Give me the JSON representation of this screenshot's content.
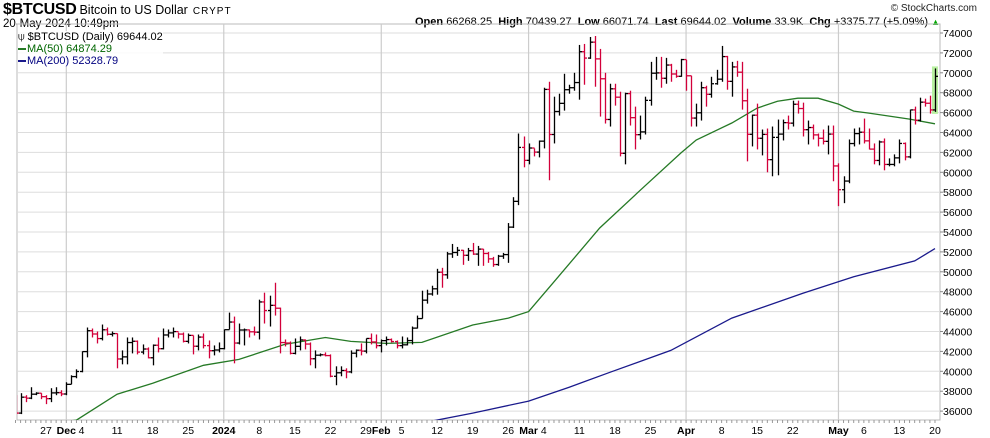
{
  "header": {
    "symbol": "$BTCUSD",
    "name": "Bitcoin to US Dollar",
    "exchange": "CRYPT",
    "datetime": "20-May-2024 10:49pm",
    "copyright": "© StockCharts.com",
    "open_label": "Open",
    "open": "66268.25",
    "high_label": "High",
    "high": "70439.27",
    "low_label": "Low",
    "low": "66071.74",
    "last_label": "Last",
    "last": "69644.02",
    "volume_label": "Volume",
    "volume": "33.9K",
    "chg_label": "Chg",
    "chg": "+3375.77 (+5.09%)",
    "chg_icon": "triangle-up-icon"
  },
  "legend": {
    "main": "$BTCUSD (Daily) 69644.02",
    "ma50": "MA(50) 64874.29",
    "ma200": "MA(200) 52328.79"
  },
  "chart_data": {
    "type": "ohlc",
    "colors": {
      "up": "#000000",
      "down": "#d2003a",
      "ma50": "#267a26",
      "ma200": "#1a1a8c",
      "last_highlight": "#b8f0a0",
      "grid": "#dddddd"
    },
    "ylim": [
      35000,
      74800
    ],
    "yticks": [
      36000,
      38000,
      40000,
      42000,
      44000,
      46000,
      48000,
      50000,
      52000,
      54000,
      56000,
      58000,
      60000,
      62000,
      64000,
      66000,
      68000,
      70000,
      72000,
      74000
    ],
    "grid": true,
    "legend_placement": "top-left",
    "xticks": [
      [
        "2023-11-27",
        "27",
        false
      ],
      [
        "2023-12-01",
        "Dec",
        true
      ],
      [
        "2023-12-04",
        "4",
        false
      ],
      [
        "2023-12-11",
        "11",
        false
      ],
      [
        "2023-12-18",
        "18",
        false
      ],
      [
        "2023-12-25",
        "25",
        false
      ],
      [
        "2024-01-01",
        "2024",
        true
      ],
      [
        "2024-01-08",
        "8",
        false
      ],
      [
        "2024-01-15",
        "15",
        false
      ],
      [
        "2024-01-22",
        "22",
        false
      ],
      [
        "2024-01-29",
        "29",
        false
      ],
      [
        "2024-02-01",
        "Feb",
        true
      ],
      [
        "2024-02-05",
        "5",
        false
      ],
      [
        "2024-02-12",
        "12",
        false
      ],
      [
        "2024-02-19",
        "19",
        false
      ],
      [
        "2024-02-26",
        "26",
        false
      ],
      [
        "2024-03-01",
        "Mar",
        true
      ],
      [
        "2024-03-04",
        "4",
        false
      ],
      [
        "2024-03-11",
        "11",
        false
      ],
      [
        "2024-03-18",
        "18",
        false
      ],
      [
        "2024-03-25",
        "25",
        false
      ],
      [
        "2024-04-01",
        "Apr",
        true
      ],
      [
        "2024-04-08",
        "8",
        false
      ],
      [
        "2024-04-15",
        "15",
        false
      ],
      [
        "2024-04-22",
        "22",
        false
      ],
      [
        "2024-05-01",
        "May",
        true
      ],
      [
        "2024-05-06",
        "6",
        false
      ],
      [
        "2024-05-13",
        "13",
        false
      ],
      [
        "2024-05-20",
        "20",
        false
      ]
    ],
    "columns": [
      "high",
      "low",
      "close"
    ],
    "first_date": "2023-11-21",
    "first_open": 37400,
    "last_open": 66268.25,
    "bars": [
      [
        37600,
        35700,
        35800
      ],
      [
        37800,
        35700,
        37400
      ],
      [
        37600,
        36900,
        37300
      ],
      [
        38400,
        37200,
        37700
      ],
      [
        37900,
        37600,
        37800
      ],
      [
        37800,
        37200,
        37450
      ],
      [
        37600,
        36700,
        37250
      ],
      [
        38300,
        36900,
        37830
      ],
      [
        38400,
        37600,
        37850
      ],
      [
        38100,
        37500,
        37720
      ],
      [
        38900,
        37600,
        38690
      ],
      [
        39600,
        38700,
        39470
      ],
      [
        40200,
        39300,
        39980
      ],
      [
        42000,
        39900,
        41980
      ],
      [
        44400,
        41400,
        44080
      ],
      [
        44300,
        43400,
        43750
      ],
      [
        44000,
        42800,
        43290
      ],
      [
        44700,
        43100,
        44170
      ],
      [
        44400,
        43600,
        43720
      ],
      [
        44000,
        43500,
        43790
      ],
      [
        43800,
        40300,
        41240
      ],
      [
        42100,
        40700,
        41450
      ],
      [
        43400,
        40700,
        42890
      ],
      [
        43400,
        41800,
        43020
      ],
      [
        43100,
        41700,
        41930
      ],
      [
        42700,
        41700,
        42240
      ],
      [
        42400,
        41300,
        41360
      ],
      [
        42700,
        40600,
        42620
      ],
      [
        43400,
        41900,
        42270
      ],
      [
        44300,
        42200,
        43650
      ],
      [
        44200,
        43400,
        43860
      ],
      [
        44400,
        43400,
        43990
      ],
      [
        43900,
        43300,
        43740
      ],
      [
        43900,
        42900,
        43010
      ],
      [
        43800,
        42800,
        43610
      ],
      [
        43600,
        41700,
        42520
      ],
      [
        43700,
        42100,
        43440
      ],
      [
        43800,
        42300,
        42580
      ],
      [
        43100,
        41300,
        42070
      ],
      [
        42600,
        41600,
        42140
      ],
      [
        42900,
        41900,
        42280
      ],
      [
        44200,
        42200,
        44180
      ],
      [
        45900,
        44200,
        44950
      ],
      [
        45500,
        40800,
        42840
      ],
      [
        44800,
        42700,
        44150
      ],
      [
        44300,
        42600,
        44160
      ],
      [
        44200,
        43400,
        43970
      ],
      [
        44500,
        43600,
        43930
      ],
      [
        47200,
        43200,
        46970
      ],
      [
        47900,
        44800,
        46110
      ],
      [
        47600,
        44500,
        46630
      ],
      [
        48900,
        45600,
        46340
      ],
      [
        46400,
        41800,
        42890
      ],
      [
        43200,
        42500,
        42840
      ],
      [
        43000,
        41700,
        41800
      ],
      [
        43300,
        41700,
        42510
      ],
      [
        43500,
        42100,
        43150
      ],
      [
        43200,
        42200,
        42740
      ],
      [
        42900,
        40600,
        41260
      ],
      [
        42100,
        40300,
        41620
      ],
      [
        41800,
        41500,
        41660
      ],
      [
        41900,
        41500,
        41580
      ],
      [
        41700,
        39400,
        39500
      ],
      [
        40500,
        38600,
        39850
      ],
      [
        40500,
        39500,
        40080
      ],
      [
        40300,
        39300,
        39940
      ],
      [
        42100,
        39800,
        41820
      ],
      [
        42200,
        41400,
        42120
      ],
      [
        42800,
        41600,
        42030
      ],
      [
        43300,
        41800,
        43300
      ],
      [
        43800,
        42700,
        42950
      ],
      [
        43700,
        42300,
        42580
      ],
      [
        43200,
        41900,
        43080
      ],
      [
        43500,
        42600,
        43190
      ],
      [
        43300,
        42900,
        42990
      ],
      [
        43100,
        42300,
        42580
      ],
      [
        43500,
        42300,
        42660
      ],
      [
        43400,
        42600,
        43090
      ],
      [
        44500,
        42700,
        44340
      ],
      [
        45600,
        44300,
        45300
      ],
      [
        48100,
        45300,
        47150
      ],
      [
        48200,
        46800,
        47770
      ],
      [
        48600,
        47600,
        48290
      ],
      [
        50300,
        47700,
        49960
      ],
      [
        50400,
        48400,
        49700
      ],
      [
        52000,
        49300,
        51800
      ],
      [
        52800,
        51400,
        51940
      ],
      [
        52500,
        51600,
        52160
      ],
      [
        52200,
        50700,
        51660
      ],
      [
        52400,
        51100,
        52120
      ],
      [
        52900,
        51700,
        51780
      ],
      [
        52600,
        50600,
        52280
      ],
      [
        52300,
        50600,
        51840
      ],
      [
        52000,
        50900,
        51300
      ],
      [
        51500,
        50500,
        50730
      ],
      [
        51700,
        50600,
        51570
      ],
      [
        51900,
        51300,
        51730
      ],
      [
        54900,
        50900,
        54490
      ],
      [
        57500,
        54400,
        57080
      ],
      [
        63900,
        56700,
        62500
      ],
      [
        63600,
        60500,
        61200
      ],
      [
        62900,
        60800,
        62440
      ],
      [
        62400,
        61600,
        62030
      ],
      [
        63200,
        61500,
        63130
      ],
      [
        68500,
        62400,
        68330
      ],
      [
        69100,
        59200,
        63800
      ],
      [
        67600,
        62900,
        66110
      ],
      [
        67900,
        65700,
        66930
      ],
      [
        69900,
        66200,
        68300
      ],
      [
        68800,
        67900,
        68500
      ],
      [
        70000,
        68200,
        69020
      ],
      [
        72800,
        67300,
        72120
      ],
      [
        72900,
        68800,
        71480
      ],
      [
        73600,
        71400,
        73080
      ],
      [
        73700,
        68600,
        71400
      ],
      [
        72400,
        65600,
        69400
      ],
      [
        70000,
        64900,
        65310
      ],
      [
        68900,
        64600,
        68390
      ],
      [
        68900,
        66700,
        67550
      ],
      [
        68100,
        61600,
        61910
      ],
      [
        68000,
        60800,
        67910
      ],
      [
        68200,
        64700,
        65490
      ],
      [
        66600,
        62300,
        63780
      ],
      [
        65700,
        63300,
        64060
      ],
      [
        67600,
        63800,
        67230
      ],
      [
        71100,
        66700,
        69960
      ],
      [
        71600,
        69300,
        69990
      ],
      [
        71600,
        68500,
        69450
      ],
      [
        71500,
        68900,
        70780
      ],
      [
        70900,
        69100,
        69880
      ],
      [
        70300,
        69500,
        69650
      ],
      [
        71400,
        69600,
        71330
      ],
      [
        71300,
        68200,
        69700
      ],
      [
        69700,
        64600,
        65450
      ],
      [
        66900,
        64600,
        65980
      ],
      [
        69100,
        65200,
        68500
      ],
      [
        68700,
        66600,
        67840
      ],
      [
        69600,
        67500,
        68900
      ],
      [
        70300,
        68800,
        69360
      ],
      [
        72700,
        69100,
        71630
      ],
      [
        71700,
        68300,
        69140
      ],
      [
        71100,
        67600,
        70590
      ],
      [
        71200,
        69600,
        70060
      ],
      [
        71100,
        66300,
        67190
      ],
      [
        68400,
        61100,
        63820
      ],
      [
        65800,
        62600,
        65740
      ],
      [
        66900,
        62300,
        63420
      ],
      [
        64300,
        61700,
        63810
      ],
      [
        64400,
        60000,
        61270
      ],
      [
        64600,
        59600,
        63510
      ],
      [
        65300,
        59700,
        63840
      ],
      [
        65300,
        63200,
        64990
      ],
      [
        65700,
        64300,
        64940
      ],
      [
        67200,
        64600,
        66840
      ],
      [
        67200,
        65900,
        66410
      ],
      [
        67000,
        63600,
        64280
      ],
      [
        65200,
        62800,
        64500
      ],
      [
        64800,
        63300,
        63760
      ],
      [
        63900,
        62600,
        63420
      ],
      [
        64300,
        62800,
        63110
      ],
      [
        64700,
        61800,
        63840
      ],
      [
        64700,
        59100,
        60640
      ],
      [
        60900,
        56600,
        58250
      ],
      [
        59600,
        56900,
        59120
      ],
      [
        63300,
        58900,
        62890
      ],
      [
        64400,
        62600,
        63890
      ],
      [
        64500,
        62800,
        64030
      ],
      [
        65400,
        62900,
        63160
      ],
      [
        64400,
        62300,
        62330
      ],
      [
        62900,
        60800,
        61190
      ],
      [
        63200,
        60700,
        63050
      ],
      [
        63400,
        60200,
        60790
      ],
      [
        61400,
        60600,
        60790
      ],
      [
        61800,
        60600,
        61450
      ],
      [
        63300,
        60900,
        62900
      ],
      [
        63000,
        61200,
        61550
      ],
      [
        66300,
        61400,
        66270
      ],
      [
        66600,
        64800,
        65230
      ],
      [
        67500,
        65100,
        67050
      ],
      [
        67400,
        66600,
        66940
      ],
      [
        67700,
        65900,
        66270
      ],
      [
        70439.27,
        66071.74,
        69644.02
      ]
    ],
    "ma50": [
      [
        "2023-11-30",
        34900
      ],
      [
        "2023-12-03",
        35100
      ],
      [
        "2023-12-11",
        37700
      ],
      [
        "2023-12-18",
        38800
      ],
      [
        "2023-12-28",
        40600
      ],
      [
        "2024-01-04",
        41200
      ],
      [
        "2024-01-13",
        42700
      ],
      [
        "2024-01-21",
        43400
      ],
      [
        "2024-01-26",
        43000
      ],
      [
        "2024-02-02",
        42800
      ],
      [
        "2024-02-09",
        42900
      ],
      [
        "2024-02-19",
        44650
      ],
      [
        "2024-02-26",
        45350
      ],
      [
        "2024-03-01",
        46000
      ],
      [
        "2024-03-06",
        49000
      ],
      [
        "2024-03-15",
        54400
      ],
      [
        "2024-03-23",
        58200
      ],
      [
        "2024-03-31",
        61950
      ],
      [
        "2024-04-03",
        63250
      ],
      [
        "2024-04-10",
        64950
      ],
      [
        "2024-04-15",
        66450
      ],
      [
        "2024-04-19",
        67150
      ],
      [
        "2024-04-23",
        67450
      ],
      [
        "2024-04-27",
        67450
      ],
      [
        "2024-05-01",
        66850
      ],
      [
        "2024-05-04",
        66150
      ],
      [
        "2024-05-07",
        65950
      ],
      [
        "2024-05-11",
        65650
      ],
      [
        "2024-05-15",
        65350
      ],
      [
        "2024-05-20",
        64874.29
      ]
    ],
    "ma200": [
      [
        "2024-02-10",
        34900
      ],
      [
        "2024-02-19",
        35800
      ],
      [
        "2024-03-01",
        37000
      ],
      [
        "2024-03-09",
        38400
      ],
      [
        "2024-03-17",
        39900
      ],
      [
        "2024-03-29",
        42100
      ],
      [
        "2024-04-10",
        45350
      ],
      [
        "2024-04-24",
        47850
      ],
      [
        "2024-05-04",
        49500
      ],
      [
        "2024-05-16",
        51100
      ],
      [
        "2024-05-20",
        52328.79
      ]
    ]
  }
}
